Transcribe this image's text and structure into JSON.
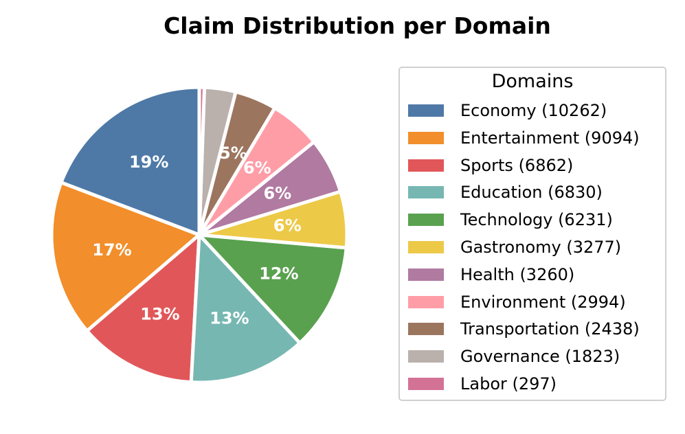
{
  "chart_data": {
    "type": "pie",
    "title": "Claim Distribution per Domain",
    "legend_title": "Domains",
    "legend_position": "right",
    "start_angle_deg": 90,
    "direction": "counterclockwise",
    "slices": [
      {
        "label": "Economy",
        "legend": "Economy (10262)",
        "value": 10262,
        "pct_label": "19%",
        "color": "#4e79a7"
      },
      {
        "label": "Entertainment",
        "legend": "Entertainment (9094)",
        "value": 9094,
        "pct_label": "17%",
        "color": "#f28e2b"
      },
      {
        "label": "Sports",
        "legend": "Sports (6862)",
        "value": 6862,
        "pct_label": "13%",
        "color": "#e15759"
      },
      {
        "label": "Education",
        "legend": "Education (6830)",
        "value": 6830,
        "pct_label": "13%",
        "color": "#76b7b2"
      },
      {
        "label": "Technology",
        "legend": "Technology (6231)",
        "value": 6231,
        "pct_label": "12%",
        "color": "#59a14f"
      },
      {
        "label": "Gastronomy",
        "legend": "Gastronomy (3277)",
        "value": 3277,
        "pct_label": "6%",
        "color": "#edc948"
      },
      {
        "label": "Health",
        "legend": "Health (3260)",
        "value": 3260,
        "pct_label": "6%",
        "color": "#b07aa1"
      },
      {
        "label": "Environment",
        "legend": "Environment (2994)",
        "value": 2994,
        "pct_label": "6%",
        "color": "#ff9da7"
      },
      {
        "label": "Transportation",
        "legend": "Transportation (2438)",
        "value": 2438,
        "pct_label": "5%",
        "color": "#9c755f"
      },
      {
        "label": "Governance",
        "legend": "Governance (1823)",
        "value": 1823,
        "pct_label": "",
        "color": "#bab0ac"
      },
      {
        "label": "Labor",
        "legend": "Labor (297)",
        "value": 297,
        "pct_label": "",
        "color": "#d37295"
      }
    ]
  }
}
